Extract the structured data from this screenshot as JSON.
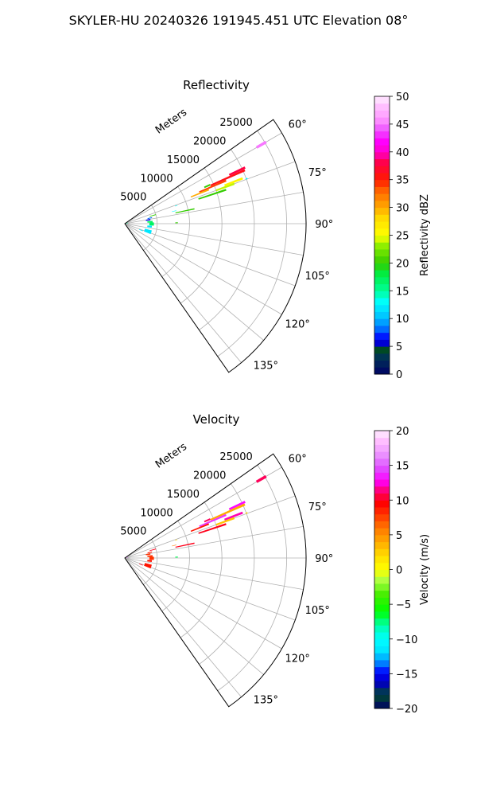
{
  "suptitle": "SKYLER-HU  20240326  191945.451 UTC Elevation 08°",
  "chart_data": [
    {
      "type": "heatmap",
      "subtype": "polar-sector",
      "title": "Reflectivity",
      "radial_axis_label": "Meters",
      "radial_range": [
        0,
        28000
      ],
      "radial_ticks": [
        5000,
        10000,
        15000,
        20000,
        25000
      ],
      "radial_tick_labels": [
        "5000",
        "10000",
        "15000",
        "20000",
        "25000"
      ],
      "angular_range_deg": [
        55,
        145
      ],
      "angular_ticks_deg": [
        60,
        75,
        90,
        105,
        120,
        135
      ],
      "angular_tick_labels": [
        "60°",
        "75°",
        "90°",
        "105°",
        "120°",
        "135°"
      ],
      "grid": true,
      "colorbar": {
        "label": "Reflectivity dBZ",
        "min": 0,
        "max": 50,
        "ticks": [
          0,
          5,
          10,
          15,
          20,
          25,
          30,
          35,
          40,
          45,
          50
        ],
        "tick_labels": [
          "0",
          "5",
          "10",
          "15",
          "20",
          "25",
          "30",
          "35",
          "40",
          "45",
          "50"
        ],
        "colormap": "NWSRef"
      },
      "segments": [
        {
          "az": [
            59.5,
            60.5
          ],
          "r": [
            23500,
            25200
          ],
          "value": 45
        },
        {
          "az": [
            64.5,
            65.5
          ],
          "r": [
            17800,
            20500
          ],
          "value": 38
        },
        {
          "az": [
            65.5,
            66.5
          ],
          "r": [
            14500,
            20300
          ],
          "value": 36
        },
        {
          "az": [
            66.5,
            67.5
          ],
          "r": [
            12500,
            17000
          ],
          "value": 34
        },
        {
          "az": [
            67.5,
            68.5
          ],
          "r": [
            11000,
            14000
          ],
          "value": 30
        },
        {
          "az": [
            68.5,
            69.5
          ],
          "r": [
            16500,
            19500
          ],
          "value": 26
        },
        {
          "az": [
            69.5,
            70.5
          ],
          "r": [
            15000,
            18000
          ],
          "value": 24
        },
        {
          "az": [
            71.0,
            72.0
          ],
          "r": [
            12000,
            16500
          ],
          "value": 20
        },
        {
          "az": [
            65.0,
            66.0
          ],
          "r": [
            13500,
            14500
          ],
          "value": 20
        },
        {
          "az": [
            77.5,
            78.5
          ],
          "r": [
            8000,
            11000
          ],
          "value": 20
        },
        {
          "az": [
            75.5,
            76.0
          ],
          "r": [
            7500,
            8200
          ],
          "value": 13
        },
        {
          "az": [
            70.5,
            71.0
          ],
          "r": [
            8200,
            8600
          ],
          "value": 13
        },
        {
          "az": [
            69.5,
            70.0
          ],
          "r": [
            19900,
            20200
          ],
          "value": 13
        },
        {
          "az": [
            88.5,
            89.5
          ],
          "r": [
            7800,
            8200
          ],
          "value": 20
        },
        {
          "az": [
            73.0,
            74.5
          ],
          "r": [
            4000,
            5000
          ],
          "value": 20
        },
        {
          "az": [
            76.5,
            78.5
          ],
          "r": [
            3600,
            4300
          ],
          "value": 8
        },
        {
          "az": [
            79.5,
            82.5
          ],
          "r": [
            3300,
            4000
          ],
          "value": 6
        },
        {
          "az": [
            84.0,
            87.5
          ],
          "r": [
            3500,
            4300
          ],
          "value": 17
        },
        {
          "az": [
            87.5,
            94.0
          ],
          "r": [
            3800,
            4500
          ],
          "value": 17
        },
        {
          "az": [
            94.5,
            98.5
          ],
          "r": [
            3500,
            4200
          ],
          "value": 12
        },
        {
          "az": [
            104.0,
            112.0
          ],
          "r": [
            3200,
            4300
          ],
          "value": 12
        },
        {
          "az": [
            111.0,
            113.0
          ],
          "r": [
            2400,
            3000
          ],
          "value": 12
        },
        {
          "az": [
            71.0,
            80.0
          ],
          "r": [
            100,
            500
          ],
          "value": 15
        }
      ]
    },
    {
      "type": "heatmap",
      "subtype": "polar-sector",
      "title": "Velocity",
      "radial_axis_label": "Meters",
      "radial_range": [
        0,
        28000
      ],
      "radial_ticks": [
        5000,
        10000,
        15000,
        20000,
        25000
      ],
      "radial_tick_labels": [
        "5000",
        "10000",
        "15000",
        "20000",
        "25000"
      ],
      "angular_range_deg": [
        55,
        145
      ],
      "angular_ticks_deg": [
        60,
        75,
        90,
        105,
        120,
        135
      ],
      "angular_tick_labels": [
        "60°",
        "75°",
        "90°",
        "105°",
        "120°",
        "135°"
      ],
      "grid": true,
      "colorbar": {
        "label": "Velocity (m/s)",
        "min": -20,
        "max": 20,
        "ticks": [
          -20,
          -15,
          -10,
          -5,
          0,
          5,
          10,
          15,
          20
        ],
        "tick_labels": [
          "−20",
          "−15",
          "−10",
          "−5",
          "0",
          "5",
          "10",
          "15",
          "20"
        ],
        "colormap": "NWSVel"
      },
      "segments": [
        {
          "az": [
            59.5,
            60.5
          ],
          "r": [
            23500,
            25200
          ],
          "value": 11
        },
        {
          "az": [
            64.5,
            65.5
          ],
          "r": [
            17800,
            20500
          ],
          "value": 13
        },
        {
          "az": [
            65.5,
            66.5
          ],
          "r": [
            14500,
            20300
          ],
          "value": 4
        },
        {
          "az": [
            66.5,
            67.5
          ],
          "r": [
            12500,
            17000
          ],
          "value": 14
        },
        {
          "az": [
            67.5,
            68.5
          ],
          "r": [
            11000,
            14000
          ],
          "value": 9
        },
        {
          "az": [
            68.5,
            69.5
          ],
          "r": [
            16500,
            19500
          ],
          "value": 12
        },
        {
          "az": [
            69.5,
            70.5
          ],
          "r": [
            15000,
            18000
          ],
          "value": 3
        },
        {
          "az": [
            71.0,
            72.0
          ],
          "r": [
            12000,
            16500
          ],
          "value": 10
        },
        {
          "az": [
            65.0,
            66.0
          ],
          "r": [
            13500,
            14500
          ],
          "value": 11
        },
        {
          "az": [
            77.5,
            78.5
          ],
          "r": [
            8000,
            11000
          ],
          "value": 10
        },
        {
          "az": [
            75.5,
            76.0
          ],
          "r": [
            7500,
            8200
          ],
          "value": 6
        },
        {
          "az": [
            70.5,
            71.0
          ],
          "r": [
            8200,
            8600
          ],
          "value": 2
        },
        {
          "az": [
            69.5,
            70.0
          ],
          "r": [
            19900,
            20200
          ],
          "value": 2
        },
        {
          "az": [
            88.5,
            89.5
          ],
          "r": [
            7800,
            8200
          ],
          "value": -7
        },
        {
          "az": [
            73.0,
            74.5
          ],
          "r": [
            4000,
            5000
          ],
          "value": 10
        },
        {
          "az": [
            76.5,
            78.5
          ],
          "r": [
            3600,
            4300
          ],
          "value": 9
        },
        {
          "az": [
            79.5,
            82.5
          ],
          "r": [
            3300,
            4000
          ],
          "value": 8
        },
        {
          "az": [
            84.0,
            87.5
          ],
          "r": [
            3500,
            4300
          ],
          "value": 8
        },
        {
          "az": [
            87.5,
            94.0
          ],
          "r": [
            3800,
            4500
          ],
          "value": 8
        },
        {
          "az": [
            94.5,
            98.5
          ],
          "r": [
            3500,
            4200
          ],
          "value": 9
        },
        {
          "az": [
            104.0,
            112.0
          ],
          "r": [
            3200,
            4300
          ],
          "value": 9
        },
        {
          "az": [
            111.0,
            113.0
          ],
          "r": [
            2400,
            3000
          ],
          "value": 10
        },
        {
          "az": [
            71.0,
            80.0
          ],
          "r": [
            100,
            500
          ],
          "value": 16
        }
      ]
    }
  ]
}
